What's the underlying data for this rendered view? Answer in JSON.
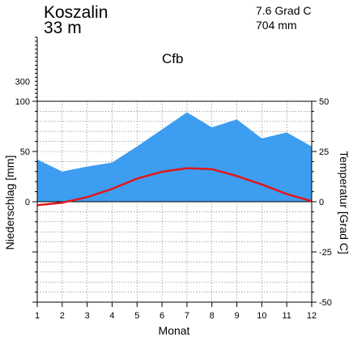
{
  "header": {
    "station": "Koszalin",
    "elevation": "33 m",
    "mean_temperature": "7.6 Grad C",
    "annual_precipitation": "704 mm",
    "climate_class": "Cfb"
  },
  "chart_data": {
    "type": "area",
    "xlabel": "Monat",
    "ylabel_left": "Niederschlag [mm]",
    "ylabel_right": "Temperatur [Grad C]",
    "x": [
      1,
      2,
      3,
      4,
      5,
      6,
      7,
      8,
      9,
      10,
      11,
      12
    ],
    "x_ticks": [
      "1",
      "2",
      "3",
      "4",
      "5",
      "6",
      "7",
      "8",
      "9",
      "10",
      "11",
      "12"
    ],
    "precip_ylim": [
      -100,
      100
    ],
    "precip_ticks": [
      "0",
      "50",
      "100"
    ],
    "precip_compressed_tick": "300",
    "temp_ylim": [
      -50,
      50
    ],
    "temp_ticks": [
      "-50",
      "-25",
      "0",
      "25",
      "50"
    ],
    "grid": true,
    "series": [
      {
        "name": "Niederschlag",
        "axis": "left",
        "kind": "area",
        "color": "#3d9df0",
        "values": [
          42,
          30,
          35,
          39,
          55,
          72,
          89,
          74,
          82,
          63,
          69,
          55
        ]
      },
      {
        "name": "Temperatur",
        "axis": "right",
        "kind": "line",
        "color": "#e3161b",
        "values": [
          -1.7,
          -0.5,
          2.3,
          6.4,
          11.5,
          14.9,
          16.7,
          16.2,
          12.8,
          8.6,
          3.8,
          0.3
        ]
      }
    ]
  }
}
